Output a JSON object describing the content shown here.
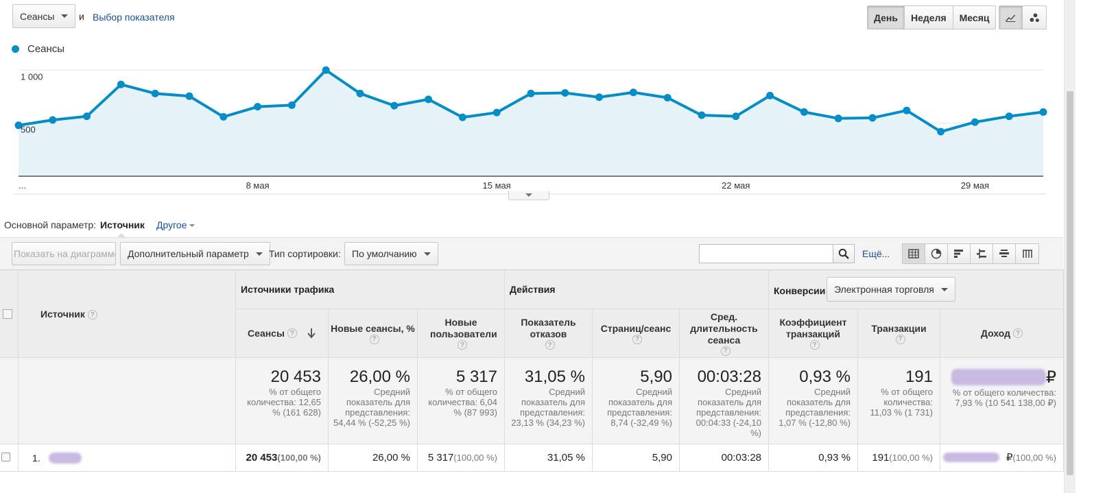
{
  "controls": {
    "metric_select": "Сеансы",
    "and_text": "и",
    "pick_metric_link": "Выбор показателя",
    "periods": [
      "День",
      "Неделя",
      "Месяц"
    ],
    "active_period": "День"
  },
  "chart_data": {
    "type": "area",
    "series": [
      {
        "name": "Сеансы",
        "color": "#058dc7",
        "values": [
          480,
          530,
          565,
          865,
          780,
          755,
          560,
          655,
          670,
          1000,
          780,
          665,
          725,
          555,
          600,
          780,
          785,
          745,
          790,
          740,
          575,
          565,
          760,
          605,
          545,
          550,
          620,
          420,
          510,
          565,
          605
        ]
      }
    ],
    "ylim": [
      0,
      1060
    ],
    "yticks": [
      {
        "v": 1000,
        "label": "1 000"
      },
      {
        "v": 500,
        "label": "500"
      }
    ],
    "xticks": [
      {
        "i": 0,
        "label": "..."
      },
      {
        "i": 7,
        "label": "8 мая"
      },
      {
        "i": 14,
        "label": "15 мая"
      },
      {
        "i": 21,
        "label": "22 мая"
      },
      {
        "i": 28,
        "label": "29 мая"
      }
    ],
    "grid": true,
    "legend": "top-left"
  },
  "dimension": {
    "label": "Основной параметр:",
    "active": "Источник",
    "other": "Другое"
  },
  "toolbar": {
    "show_chart": "Показать на диаграмме",
    "secondary": "Дополнительный параметр",
    "sort_label": "Тип сортировки:",
    "sort_value": "По умолчанию",
    "search_placeholder": "",
    "more": "Ещё..."
  },
  "table": {
    "dim_header": "Источник",
    "groups": {
      "traffic": "Источники трафика",
      "actions": "Действия",
      "conversions": "Конверсии",
      "conversions_select": "Электронная торговля"
    },
    "columns": [
      "Сеансы",
      "Новые сеансы, %",
      "Новые пользователи",
      "Показатель отказов",
      "Страниц/сеанс",
      "Сред. длительность сеанса",
      "Коэффициент транзакций",
      "Транзакции",
      "Доход"
    ],
    "totals": [
      {
        "value": "20 453",
        "note": "% от общего количества: 12,65 % (161 628)"
      },
      {
        "value": "26,00 %",
        "note": "Средний показатель для представления: 54,44 % (-52,25 %)"
      },
      {
        "value": "5 317",
        "note": "% от общего количества: 6,04 % (87 993)"
      },
      {
        "value": "31,05 %",
        "note": "Средний показатель для представления: 23,13 % (34,23 %)"
      },
      {
        "value": "5,90",
        "note": "Средний показатель для представления: 8,74 (-32,49 %)"
      },
      {
        "value": "00:03:28",
        "note": "Средний показатель для представления: 00:04:33 (-24,10 %)"
      },
      {
        "value": "0,93 %",
        "note": "Средний показатель для представления: 1,07 % (-12,80 %)"
      },
      {
        "value": "191",
        "note": "% от общего количества: 11,03 % (1 731)"
      },
      {
        "value": "₽",
        "note": "% от общего количества: 7,93 % (10 541 138,00 ₽)"
      }
    ],
    "rows": [
      {
        "index": "1.",
        "cells": [
          "20 453",
          "26,00 %",
          "5 317",
          "31,05 %",
          "5,90",
          "00:03:28",
          "0,93 %",
          "191",
          "₽"
        ],
        "pcts": [
          "(100,00 %)",
          "",
          "(100,00 %)",
          "",
          "",
          "",
          "",
          "(100,00 %)",
          "(100,00 %)"
        ]
      }
    ]
  }
}
